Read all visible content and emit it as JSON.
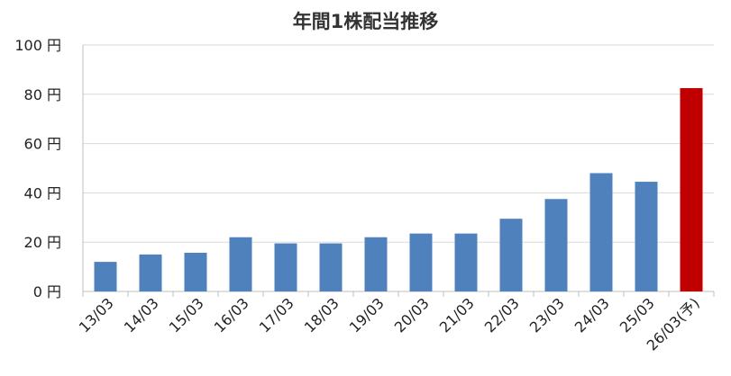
{
  "chart_data": {
    "type": "bar",
    "title": "年間1株配当推移",
    "xlabel": "",
    "ylabel": "",
    "categories": [
      "13/03",
      "14/03",
      "15/03",
      "16/03",
      "17/03",
      "18/03",
      "19/03",
      "20/03",
      "21/03",
      "22/03",
      "23/03",
      "24/03",
      "25/03",
      "26/03(予)"
    ],
    "values": [
      12,
      15,
      15.7,
      22,
      19.5,
      19.5,
      22,
      23.5,
      23.5,
      29.5,
      37.5,
      48,
      44.5,
      82.5
    ],
    "ylim": [
      0,
      100
    ],
    "yticks": [
      0,
      20,
      40,
      60,
      80,
      100
    ],
    "ytick_labels": [
      "0 円",
      "20 円",
      "40 円",
      "60 円",
      "80 円",
      "100 円"
    ],
    "grid": true,
    "legend": "none",
    "colors": {
      "actual": "#4f81bd",
      "forecast": "#c00000",
      "grid": "#d9d9d9",
      "axis": "#bfbfbf"
    },
    "forecast_index": 13
  }
}
